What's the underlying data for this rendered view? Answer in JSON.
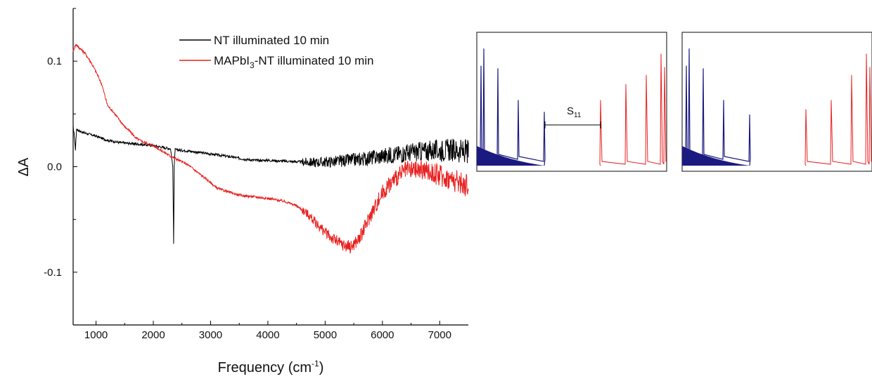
{
  "chart_data": [
    {
      "type": "line",
      "xlabel": "Frequency (cm⁻¹)",
      "ylabel": "ΔA",
      "xlim": [
        600,
        7500
      ],
      "ylim": [
        -0.15,
        0.15
      ],
      "xticks": [
        1000,
        2000,
        3000,
        4000,
        5000,
        6000,
        7000
      ],
      "xtick_labels": [
        "1000",
        "2000",
        "3000",
        "4000",
        "5000",
        "6000",
        "7000"
      ],
      "yticks": [
        0.1,
        0.0,
        -0.1
      ],
      "ytick_labels": [
        "0.1",
        "0.0",
        "-0.1"
      ],
      "legend_position": "top-right",
      "series": [
        {
          "name": "NT illuminated 10 min",
          "color": "#000000",
          "x": [
            600,
            620,
            640,
            660,
            700,
            800,
            1000,
            1200,
            1400,
            1600,
            1800,
            2000,
            2200,
            2300,
            2340,
            2355,
            2365,
            2380,
            2400,
            2600,
            3000,
            3400,
            3600,
            3800,
            4000,
            4400,
            4800,
            5200,
            5600,
            6000,
            6400,
            6800,
            7200,
            7500
          ],
          "y": [
            0.038,
            0.03,
            0.016,
            0.036,
            0.034,
            0.032,
            0.029,
            0.025,
            0.023,
            0.022,
            0.021,
            0.02,
            0.018,
            0.017,
            0.0,
            -0.072,
            0.0,
            0.016,
            0.016,
            0.015,
            0.012,
            0.009,
            0.007,
            0.006,
            0.006,
            0.005,
            0.004,
            0.005,
            0.007,
            0.01,
            0.013,
            0.015,
            0.016,
            0.014
          ]
        },
        {
          "name": "MAPbI₃-NT illuminated 10 min",
          "color": "#e8201f",
          "x": [
            600,
            650,
            700,
            800,
            900,
            1000,
            1100,
            1200,
            1300,
            1400,
            1500,
            1600,
            1700,
            1800,
            2000,
            2300,
            2600,
            3000,
            3100,
            3200,
            3500,
            4000,
            4300,
            4500,
            4700,
            4900,
            5100,
            5300,
            5450,
            5600,
            5800,
            6000,
            6200,
            6400,
            6700,
            7000,
            7300,
            7500
          ],
          "y": [
            0.11,
            0.116,
            0.113,
            0.108,
            0.1,
            0.09,
            0.078,
            0.058,
            0.052,
            0.045,
            0.038,
            0.033,
            0.027,
            0.024,
            0.02,
            0.01,
            0.002,
            -0.015,
            -0.02,
            -0.022,
            -0.027,
            -0.03,
            -0.033,
            -0.037,
            -0.045,
            -0.057,
            -0.067,
            -0.074,
            -0.076,
            -0.068,
            -0.045,
            -0.025,
            -0.012,
            -0.004,
            -0.003,
            -0.008,
            -0.014,
            -0.018
          ]
        }
      ],
      "noise_from_x": 4600
    },
    {
      "type": "line",
      "panel": "spectrum-with-gap",
      "annotation": "S₁₁",
      "colors": {
        "left": "#1a1a80",
        "right": "#e8201f"
      },
      "left_peaks": [
        0.8,
        0.93,
        0.78,
        0.54,
        0.45
      ],
      "right_peaks": [
        0.54,
        0.66,
        0.73,
        0.89,
        0.79
      ]
    },
    {
      "type": "line",
      "panel": "spectrum-without-gap",
      "colors": {
        "left": "#1a1a80",
        "right": "#e8201f"
      },
      "left_peaks": [
        0.8,
        0.93,
        0.78,
        0.54,
        0.43
      ],
      "right_peaks": [
        0.47,
        0.54,
        0.73,
        0.89,
        0.79
      ]
    }
  ]
}
